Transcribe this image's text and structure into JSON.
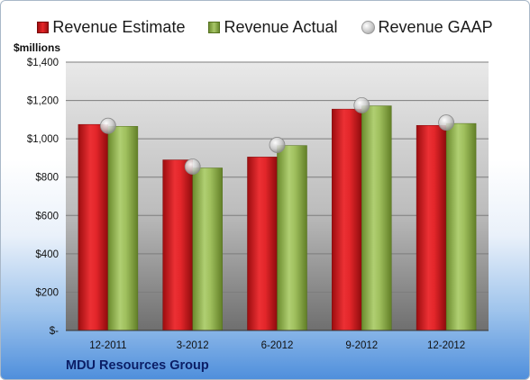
{
  "legend": {
    "estimate_label": "Revenue Estimate",
    "actual_label": "Revenue Actual",
    "gaap_label": "Revenue GAAP"
  },
  "unit_label": "$millions",
  "footer": {
    "company": "MDU Resources Group"
  },
  "colors": {
    "estimate": "#d9191c",
    "actual": "#94b54f",
    "gaap": "#c8c8c8",
    "plot_top": "#e8e8e8",
    "plot_bottom": "#7a7a7a"
  },
  "chart_data": {
    "type": "bar",
    "categories": [
      "12-2011",
      "3-2012",
      "6-2012",
      "9-2012",
      "12-2012"
    ],
    "series": [
      {
        "name": "Revenue Estimate",
        "values": [
          1075,
          890,
          905,
          1155,
          1070
        ]
      },
      {
        "name": "Revenue Actual",
        "values": [
          1065,
          848,
          965,
          1172,
          1080
        ]
      },
      {
        "name": "Revenue GAAP",
        "type": "scatter",
        "values": [
          1068,
          855,
          968,
          1175,
          1085
        ]
      }
    ],
    "ylabel": "$millions",
    "ylim": [
      0,
      1400
    ],
    "yticks": [
      0,
      200,
      400,
      600,
      800,
      1000,
      1200,
      1400
    ],
    "ytick_labels": [
      "$-",
      "$200",
      "$400",
      "$600",
      "$800",
      "$1,000",
      "$1,200",
      "$1,400"
    ],
    "grid": true,
    "legend_position": "top"
  }
}
